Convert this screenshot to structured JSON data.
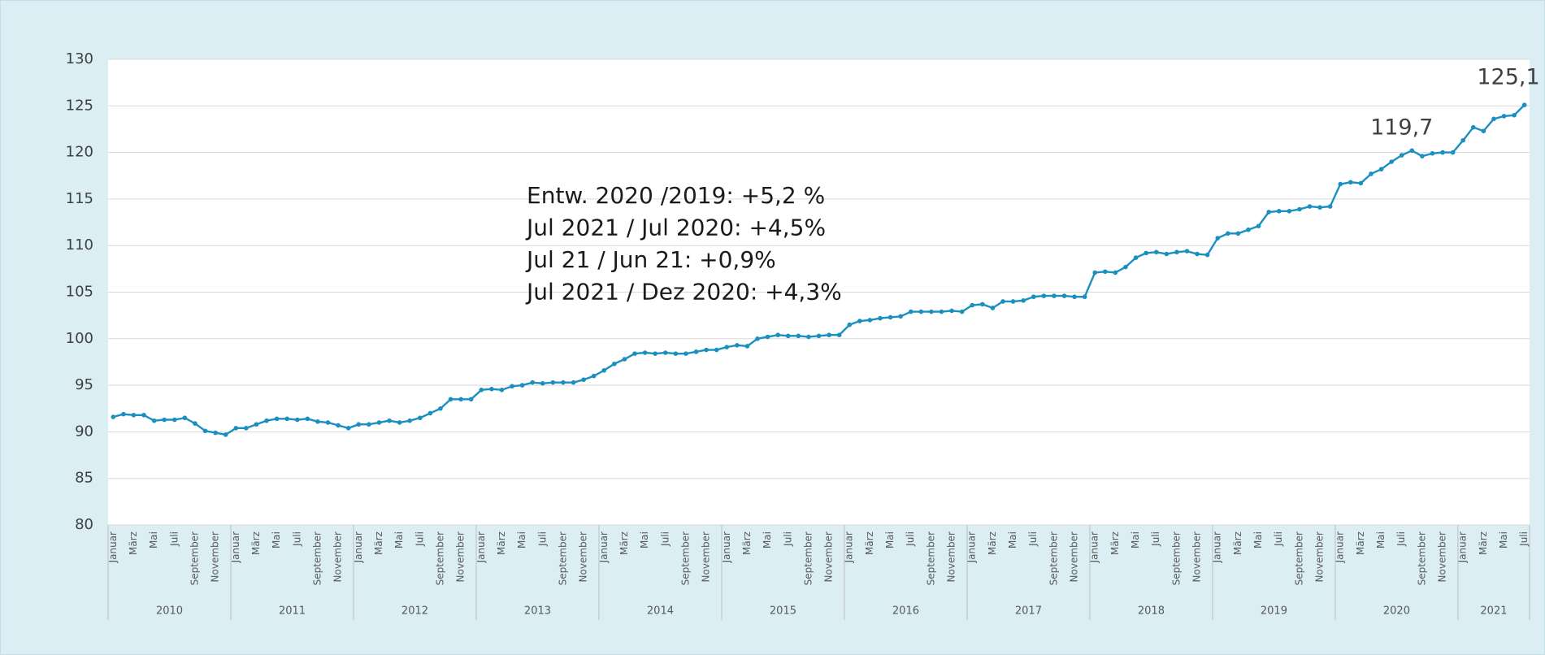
{
  "chart_data": {
    "type": "line",
    "categories": [
      "Januar",
      null,
      "März",
      null,
      "Mai",
      null,
      "Juli",
      null,
      "September",
      null,
      "November",
      null,
      "Januar",
      null,
      "März",
      null,
      "Mai",
      null,
      "Juli",
      null,
      "September",
      null,
      "November",
      null,
      "Januar",
      null,
      "März",
      null,
      "Mai",
      null,
      "Juli",
      null,
      "September",
      null,
      "November",
      null,
      "Januar",
      null,
      "März",
      null,
      "Mai",
      null,
      "Juli",
      null,
      "September",
      null,
      "November",
      null,
      "Januar",
      null,
      "März",
      null,
      "Mai",
      null,
      "Juli",
      null,
      "September",
      null,
      "November",
      null,
      "Januar",
      null,
      "März",
      null,
      "Mai",
      null,
      "Juli",
      null,
      "September",
      null,
      "November",
      null,
      "Januar",
      null,
      "März",
      null,
      "Mai",
      null,
      "Juli",
      null,
      "September",
      null,
      "November",
      null,
      "Januar",
      null,
      "März",
      null,
      "Mai",
      null,
      "Juli",
      null,
      "September",
      null,
      "November",
      null,
      "Januar",
      null,
      "März",
      null,
      "Mai",
      null,
      "Juli",
      null,
      "September",
      null,
      "November",
      null,
      "Januar",
      null,
      "März",
      null,
      "Mai",
      null,
      "Juli",
      null,
      "September",
      null,
      "November",
      null,
      "Januar",
      null,
      "März",
      null,
      "Mai",
      null,
      "Juli",
      null,
      "September",
      null,
      "November",
      null,
      "Januar",
      null,
      "März",
      null,
      "Mai",
      null,
      "Juli"
    ],
    "years": [
      "2010",
      "2011",
      "2012",
      "2013",
      "2014",
      "2015",
      "2016",
      "2017",
      "2018",
      "2019",
      "2020",
      "2021"
    ],
    "values": [
      91.6,
      91.9,
      91.8,
      91.8,
      91.2,
      91.3,
      91.3,
      91.5,
      90.9,
      90.1,
      89.9,
      89.7,
      90.4,
      90.4,
      90.8,
      91.2,
      91.4,
      91.4,
      91.3,
      91.4,
      91.1,
      91.0,
      90.7,
      90.4,
      90.8,
      90.8,
      91.0,
      91.2,
      91.0,
      91.2,
      91.5,
      92.0,
      92.5,
      93.5,
      93.5,
      93.5,
      94.5,
      94.6,
      94.5,
      94.9,
      95.0,
      95.3,
      95.2,
      95.3,
      95.3,
      95.3,
      95.6,
      96.0,
      96.6,
      97.3,
      97.8,
      98.4,
      98.5,
      98.4,
      98.5,
      98.4,
      98.4,
      98.6,
      98.8,
      98.8,
      99.1,
      99.3,
      99.2,
      100.0,
      100.2,
      100.4,
      100.3,
      100.3,
      100.2,
      100.3,
      100.4,
      100.4,
      101.5,
      101.9,
      102.0,
      102.2,
      102.3,
      102.4,
      102.9,
      102.9,
      102.9,
      102.9,
      103.0,
      102.9,
      103.6,
      103.7,
      103.3,
      104.0,
      104.0,
      104.1,
      104.5,
      104.6,
      104.6,
      104.6,
      104.5,
      104.5,
      107.1,
      107.2,
      107.1,
      107.7,
      108.7,
      109.2,
      109.3,
      109.1,
      109.3,
      109.4,
      109.1,
      109.0,
      110.8,
      111.3,
      111.3,
      111.7,
      112.1,
      113.6,
      113.7,
      113.7,
      113.9,
      114.2,
      114.1,
      114.2,
      116.6,
      116.8,
      116.7,
      117.7,
      118.2,
      119.0,
      119.7,
      120.2,
      119.6,
      119.9,
      120.0,
      120.0,
      121.3,
      122.7,
      122.3,
      123.6,
      123.9,
      124.0,
      125.1
    ],
    "color": "#1a8fc0",
    "point_labels": [
      {
        "index": 126,
        "label": "119,7"
      },
      {
        "index": 138,
        "label": "125,1"
      }
    ],
    "text_box": [
      "Entw. 2020  /2019: +5,2 %",
      "Jul 2021 / Jul 2020: +4,5%",
      "Jul 21 / Jun 21: +0,9%",
      "Jul 2021 / Dez 2020: +4,3%"
    ],
    "ylim": [
      80,
      130
    ],
    "yticks": [
      80,
      85,
      90,
      95,
      100,
      105,
      110,
      115,
      120,
      125,
      130
    ],
    "grid": true
  }
}
